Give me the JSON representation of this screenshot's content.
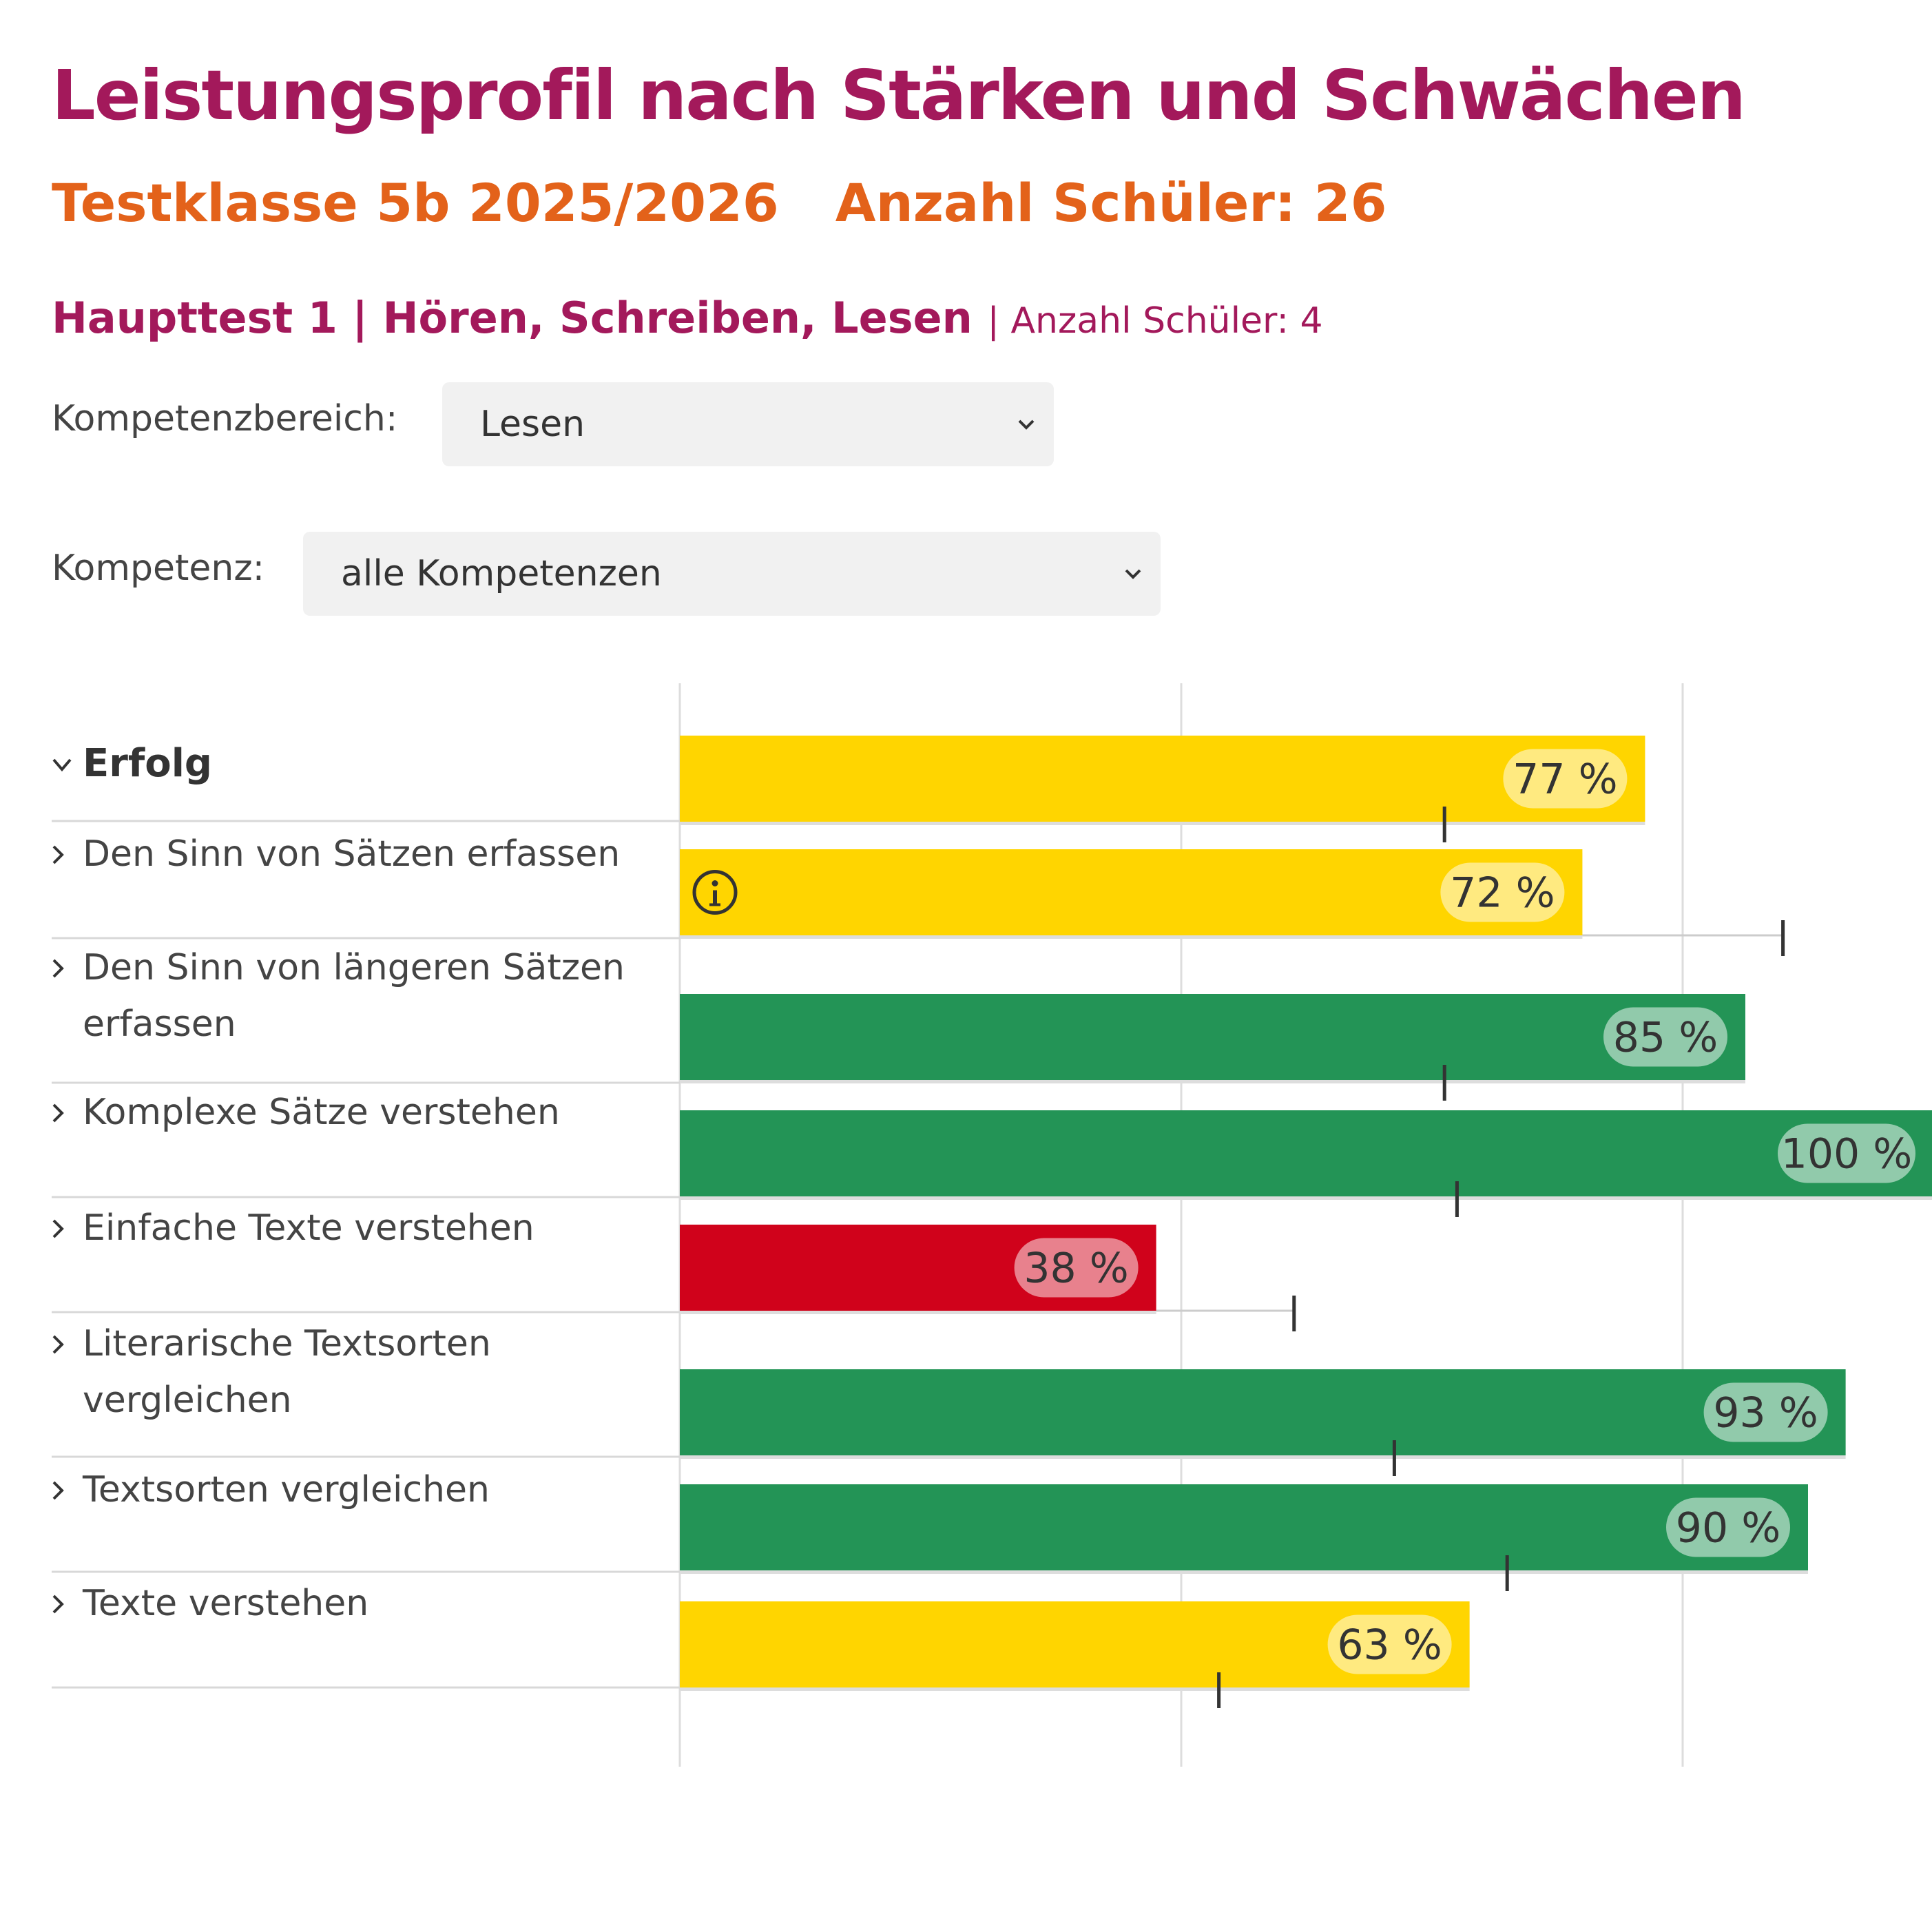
{
  "title": "Leistungsprofil nach Stärken und Schwächen",
  "class_info": {
    "class_label": "Testklasse 5b 2025/2026",
    "students_label": "Anzahl Schüler: 26"
  },
  "test": {
    "title": "Haupttest 1 | Hören, Schreiben, Lesen",
    "students_label": "| Anzahl Schüler: 4"
  },
  "filters": {
    "area_label": "Kompetenzbereich:",
    "area_value": "Lesen",
    "competence_label": "Kompetenz:",
    "competence_value": "alle Kompetenzen"
  },
  "colors": {
    "low": "#d0021b",
    "medium": "#ffd500",
    "high": "#239456",
    "accent": "#a3195b",
    "orange": "#e3621a"
  },
  "icons": {
    "expand": "chevron-down-icon",
    "collapsed": "chevron-right-icon",
    "info": "info-icon",
    "select": "chevron-down-icon"
  },
  "chart_data": {
    "type": "bar",
    "orientation": "horizontal",
    "xlim": [
      0,
      100
    ],
    "grid": true,
    "categories": [
      "Erfolg",
      "Den Sinn von Sätzen erfassen",
      "Den Sinn von längeren Sätzen erfassen",
      "Komplexe Sätze verstehen",
      "Einfache Texte verstehen",
      "Literarische Textsorten vergleichen",
      "Textsorten vergleichen",
      "Texte verstehen"
    ],
    "label_lines": [
      [
        "Erfolg"
      ],
      [
        "Den Sinn von Sätzen erfassen"
      ],
      [
        "Den Sinn von längeren Sätzen",
        "erfassen"
      ],
      [
        "Komplexe Sätze verstehen"
      ],
      [
        "Einfache Texte verstehen"
      ],
      [
        "Literarische Textsorten",
        "vergleichen"
      ],
      [
        "Textsorten vergleichen"
      ],
      [
        "Texte verstehen"
      ]
    ],
    "values": [
      77,
      72,
      85,
      100,
      38,
      93,
      90,
      63
    ],
    "value_labels": [
      "77 %",
      "72 %",
      "85 %",
      "100 %",
      "38 %",
      "93 %",
      "90 %",
      "63 %"
    ],
    "levels": [
      "medium",
      "medium",
      "high",
      "high",
      "low",
      "high",
      "high",
      "medium"
    ],
    "reference_values": [
      61,
      88,
      61,
      62,
      49,
      57,
      66,
      43
    ],
    "info_flags": [
      false,
      true,
      false,
      false,
      false,
      false,
      false,
      false
    ]
  }
}
